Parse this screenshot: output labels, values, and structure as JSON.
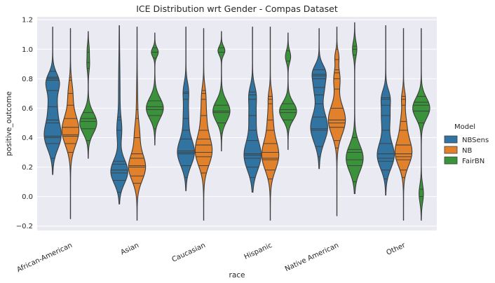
{
  "chart_data": {
    "type": "violin",
    "title": "ICE Distribution wrt Gender - Compas Dataset",
    "xlabel": "race",
    "ylabel": "positive_outcome",
    "ylim": [
      -0.23,
      1.22
    ],
    "yticks": [
      -0.2,
      0.0,
      0.2,
      0.4,
      0.6,
      0.8,
      1.0,
      1.2
    ],
    "ytick_labels": [
      "−0.2",
      "0.0",
      "0.2",
      "0.4",
      "0.6",
      "0.8",
      "1.0",
      "1.2"
    ],
    "categories": [
      "African-American",
      "Asian",
      "Caucasian",
      "Hispanic",
      "Native American",
      "Other"
    ],
    "grid": true,
    "legend": {
      "title": "Model",
      "position": "right"
    },
    "series": [
      {
        "name": "NBSens",
        "color": "#3274a1",
        "violins": [
          {
            "min": 0.15,
            "max": 1.15,
            "peaks": [
              [
                0.41,
                1.0,
                0.09
              ],
              [
                0.62,
                0.5,
                0.1
              ],
              [
                0.78,
                0.7,
                0.06
              ]
            ],
            "lines": [
              0.21,
              0.26,
              0.36,
              0.4,
              0.41,
              0.5,
              0.52,
              0.61,
              0.72,
              0.79,
              0.8,
              0.81,
              0.85
            ]
          },
          {
            "min": -0.05,
            "max": 1.16,
            "peaks": [
              [
                0.17,
                1.0,
                0.08
              ],
              [
                0.45,
                0.25,
                0.08
              ],
              [
                0.7,
                0.08,
                0.2
              ]
            ],
            "lines": [
              0.03,
              0.11,
              0.16,
              0.18,
              0.22,
              0.24,
              0.45,
              0.52,
              0.54
            ]
          },
          {
            "min": 0.04,
            "max": 1.15,
            "peaks": [
              [
                0.3,
                1.0,
                0.09
              ],
              [
                0.55,
                0.3,
                0.1
              ],
              [
                0.72,
                0.25,
                0.06
              ]
            ],
            "lines": [
              0.13,
              0.21,
              0.29,
              0.3,
              0.31,
              0.39,
              0.45,
              0.53,
              0.66,
              0.7,
              0.71
            ]
          },
          {
            "min": 0.03,
            "max": 1.15,
            "peaks": [
              [
                0.28,
                1.0,
                0.1
              ],
              [
                0.55,
                0.4,
                0.1
              ],
              [
                0.7,
                0.3,
                0.06
              ]
            ],
            "lines": [
              0.13,
              0.2,
              0.26,
              0.28,
              0.29,
              0.38,
              0.45,
              0.55,
              0.66,
              0.69,
              0.71
            ]
          },
          {
            "min": 0.19,
            "max": 1.14,
            "peaks": [
              [
                0.47,
                1.0,
                0.1
              ],
              [
                0.75,
                0.6,
                0.08
              ],
              [
                0.85,
                0.5,
                0.05
              ]
            ],
            "lines": [
              0.27,
              0.34,
              0.45,
              0.46,
              0.54,
              0.63,
              0.69,
              0.74,
              0.8,
              0.82,
              0.83,
              0.86
            ]
          },
          {
            "min": 0.01,
            "max": 1.16,
            "peaks": [
              [
                0.28,
                1.0,
                0.09
              ],
              [
                0.55,
                0.5,
                0.1
              ],
              [
                0.68,
                0.3,
                0.05
              ]
            ],
            "lines": [
              0.12,
              0.18,
              0.24,
              0.26,
              0.29,
              0.36,
              0.45,
              0.55,
              0.62,
              0.66,
              0.67
            ]
          }
        ]
      },
      {
        "name": "NB",
        "color": "#e1812c",
        "violins": [
          {
            "min": -0.15,
            "max": 1.14,
            "peaks": [
              [
                0.45,
                1.0,
                0.1
              ],
              [
                0.7,
                0.25,
                0.08
              ]
            ],
            "lines": [
              0.3,
              0.36,
              0.41,
              0.42,
              0.47,
              0.53,
              0.62,
              0.7,
              0.79,
              0.81,
              0.85
            ]
          },
          {
            "min": -0.16,
            "max": 1.15,
            "peaks": [
              [
                0.2,
                1.0,
                0.09
              ],
              [
                0.42,
                0.25,
                0.08
              ],
              [
                0.6,
                0.07,
                0.15
              ]
            ],
            "lines": [
              0.09,
              0.14,
              0.2,
              0.21,
              0.26,
              0.29,
              0.4,
              0.53,
              0.59
            ]
          },
          {
            "min": -0.16,
            "max": 1.14,
            "peaks": [
              [
                0.31,
                1.0,
                0.1
              ],
              [
                0.55,
                0.3,
                0.1
              ],
              [
                0.7,
                0.15,
                0.06
              ]
            ],
            "lines": [
              0.16,
              0.21,
              0.27,
              0.3,
              0.35,
              0.39,
              0.45,
              0.55,
              0.66,
              0.7,
              0.72
            ]
          },
          {
            "min": -0.16,
            "max": 1.15,
            "peaks": [
              [
                0.28,
                1.0,
                0.1
              ],
              [
                0.52,
                0.3,
                0.1
              ],
              [
                0.68,
                0.15,
                0.05
              ]
            ],
            "lines": [
              0.12,
              0.18,
              0.25,
              0.26,
              0.3,
              0.36,
              0.45,
              0.52,
              0.63,
              0.66,
              0.68
            ]
          },
          {
            "min": -0.13,
            "max": 1.15,
            "peaks": [
              [
                0.52,
                1.0,
                0.1
              ],
              [
                0.8,
                0.35,
                0.07
              ],
              [
                0.95,
                0.2,
                0.04
              ]
            ],
            "lines": [
              0.33,
              0.38,
              0.47,
              0.5,
              0.52,
              0.6,
              0.73,
              0.8,
              0.84,
              0.86,
              0.93,
              1.0
            ]
          },
          {
            "min": -0.16,
            "max": 1.14,
            "peaks": [
              [
                0.3,
                1.0,
                0.09
              ],
              [
                0.5,
                0.3,
                0.08
              ],
              [
                0.67,
                0.2,
                0.05
              ]
            ],
            "lines": [
              0.13,
              0.18,
              0.25,
              0.27,
              0.29,
              0.35,
              0.45,
              0.51,
              0.62,
              0.66,
              0.68
            ]
          }
        ]
      },
      {
        "name": "FairBN",
        "color": "#3a923a",
        "violins": [
          {
            "min": 0.26,
            "max": 1.12,
            "peaks": [
              [
                0.5,
                1.0,
                0.07
              ],
              [
                0.9,
                0.15,
                0.05
              ],
              [
                1.0,
                0.1,
                0.04
              ]
            ],
            "lines": [
              0.31,
              0.38,
              0.46,
              0.51,
              0.53,
              0.57,
              0.87,
              0.91,
              0.98
            ]
          },
          {
            "min": 0.35,
            "max": 1.11,
            "peaks": [
              [
                0.6,
                1.0,
                0.07
              ],
              [
                0.98,
                0.4,
                0.03
              ]
            ],
            "lines": [
              0.42,
              0.46,
              0.55,
              0.59,
              0.61,
              0.65,
              0.94,
              0.98,
              1.01
            ]
          },
          {
            "min": 0.31,
            "max": 1.12,
            "peaks": [
              [
                0.58,
                1.0,
                0.07
              ],
              [
                0.99,
                0.4,
                0.03
              ]
            ],
            "lines": [
              0.38,
              0.43,
              0.5,
              0.57,
              0.58,
              0.62,
              0.93,
              0.98,
              1.01
            ]
          },
          {
            "min": 0.32,
            "max": 1.11,
            "peaks": [
              [
                0.58,
                1.0,
                0.06
              ],
              [
                0.95,
                0.3,
                0.04
              ]
            ],
            "lines": [
              0.39,
              0.44,
              0.52,
              0.57,
              0.59,
              0.63,
              0.86,
              0.92,
              0.99
            ]
          },
          {
            "min": 0.02,
            "max": 1.18,
            "peaks": [
              [
                0.26,
                1.0,
                0.09
              ],
              [
                1.0,
                0.25,
                0.05
              ]
            ],
            "lines": [
              0.1,
              0.21,
              0.25,
              0.3,
              0.32,
              0.4,
              0.96,
              1.0,
              1.02
            ]
          },
          {
            "min": -0.16,
            "max": 1.14,
            "peaks": [
              [
                0.6,
                1.0,
                0.07
              ],
              [
                0.02,
                0.25,
                0.06
              ]
            ],
            "lines": [
              0.0,
              0.05,
              0.42,
              0.5,
              0.58,
              0.62,
              0.64,
              0.68
            ]
          }
        ]
      }
    ]
  }
}
